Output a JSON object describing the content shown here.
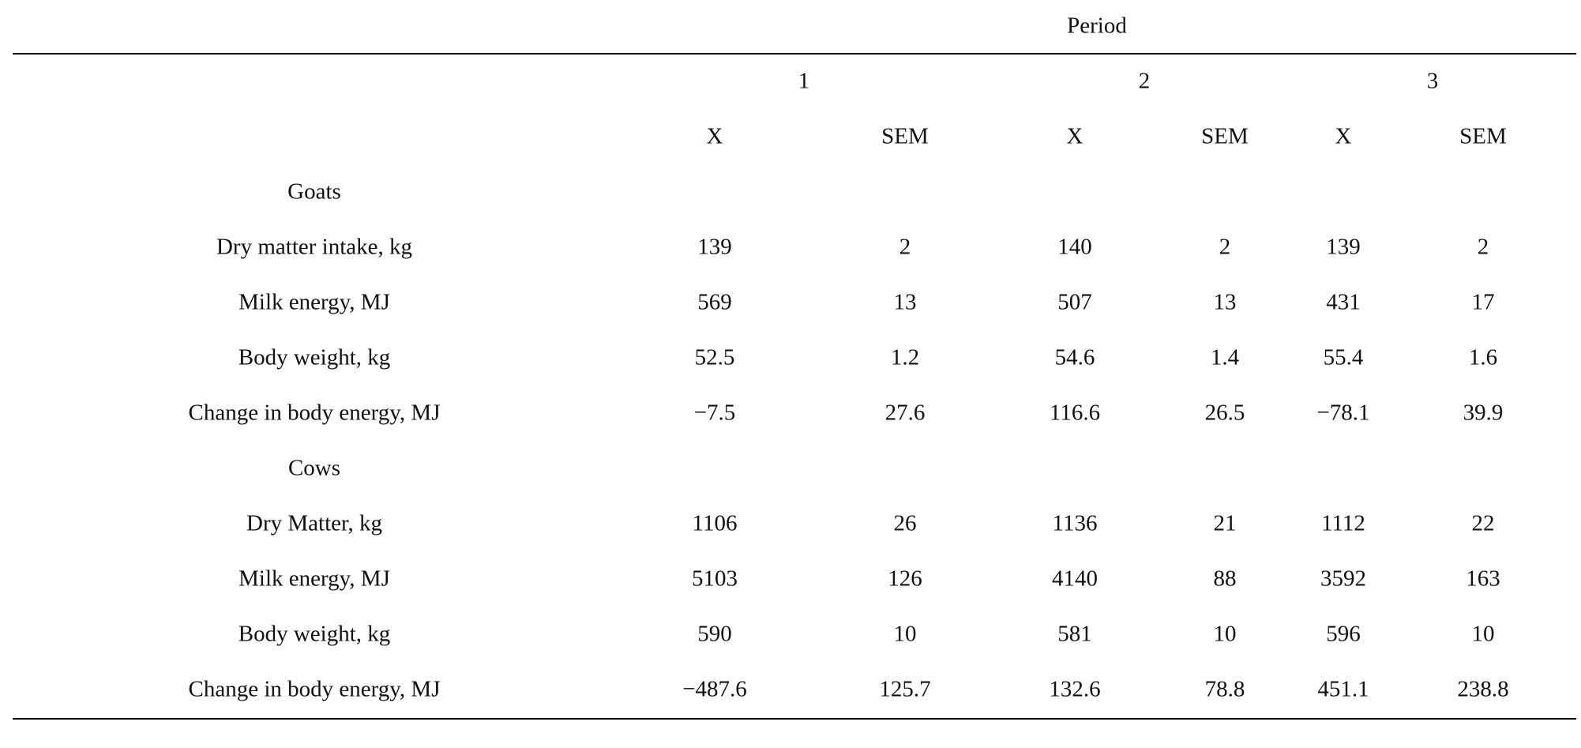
{
  "header": {
    "group_label": "Period",
    "periods": [
      "1",
      "2",
      "3"
    ],
    "subcolumns": [
      "X",
      "SEM",
      "X",
      "SEM",
      "X",
      "SEM"
    ]
  },
  "rows": [
    {
      "label": "Goats",
      "section": true,
      "values": []
    },
    {
      "label": "Dry matter intake, kg",
      "values": [
        "139",
        "2",
        "140",
        "2",
        "139",
        "2"
      ]
    },
    {
      "label": "Milk energy, MJ",
      "values": [
        "569",
        "13",
        "507",
        "13",
        "431",
        "17"
      ]
    },
    {
      "label": "Body weight, kg",
      "values": [
        "52.5",
        "1.2",
        "54.6",
        "1.4",
        "55.4",
        "1.6"
      ]
    },
    {
      "label": "Change in body energy, MJ",
      "values": [
        "−7.5",
        "27.6",
        "116.6",
        "26.5",
        "−78.1",
        "39.9"
      ]
    },
    {
      "label": "Cows",
      "section": true,
      "values": []
    },
    {
      "label": "Dry Matter, kg",
      "values": [
        "1106",
        "26",
        "1136",
        "21",
        "1112",
        "22"
      ]
    },
    {
      "label": "Milk energy, MJ",
      "values": [
        "5103",
        "126",
        "4140",
        "88",
        "3592",
        "163"
      ]
    },
    {
      "label": "Body weight, kg",
      "values": [
        "590",
        "10",
        "581",
        "10",
        "596",
        "10"
      ]
    },
    {
      "label": "Change in body energy, MJ",
      "values": [
        "−487.6",
        "125.7",
        "132.6",
        "78.8",
        "451.1",
        "238.8"
      ]
    }
  ]
}
